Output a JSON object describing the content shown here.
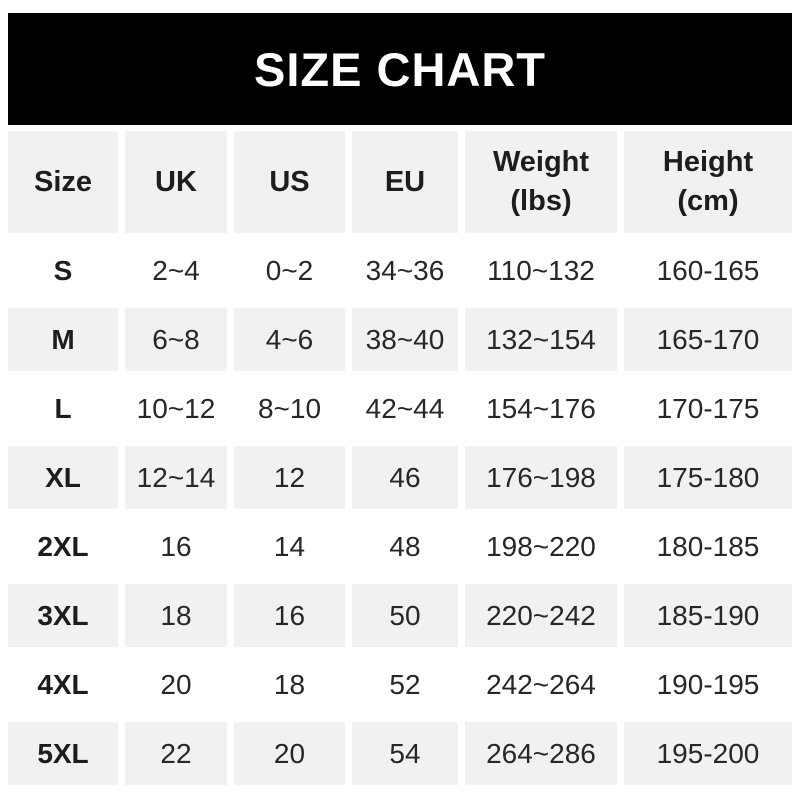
{
  "banner": {
    "title": "SIZE CHART"
  },
  "colors": {
    "banner_bg": "#000000",
    "banner_text": "#ffffff",
    "stripe_bg": "#f1f1f1",
    "row_bg": "#ffffff",
    "header_text": "#1d1d1f",
    "data_text": "#272727"
  },
  "chart_data": {
    "type": "table",
    "title": "SIZE CHART",
    "columns": [
      {
        "label": "Size",
        "sub": ""
      },
      {
        "label": "UK",
        "sub": ""
      },
      {
        "label": "US",
        "sub": ""
      },
      {
        "label": "EU",
        "sub": ""
      },
      {
        "label": "Weight",
        "sub": "(lbs)"
      },
      {
        "label": "Height",
        "sub": "(cm)"
      }
    ],
    "rows": [
      [
        "S",
        "2~4",
        "0~2",
        "34~36",
        "110~132",
        "160-165"
      ],
      [
        "M",
        "6~8",
        "4~6",
        "38~40",
        "132~154",
        "165-170"
      ],
      [
        "L",
        "10~12",
        "8~10",
        "42~44",
        "154~176",
        "170-175"
      ],
      [
        "XL",
        "12~14",
        "12",
        "46",
        "176~198",
        "175-180"
      ],
      [
        "2XL",
        "16",
        "14",
        "48",
        "198~220",
        "180-185"
      ],
      [
        "3XL",
        "18",
        "16",
        "50",
        "220~242",
        "185-190"
      ],
      [
        "4XL",
        "20",
        "18",
        "52",
        "242~264",
        "190-195"
      ],
      [
        "5XL",
        "22",
        "20",
        "54",
        "264~286",
        "195-200"
      ]
    ],
    "layout": {
      "striped": true,
      "header_row_shaded": true,
      "legend": "none",
      "grid": "off"
    }
  }
}
